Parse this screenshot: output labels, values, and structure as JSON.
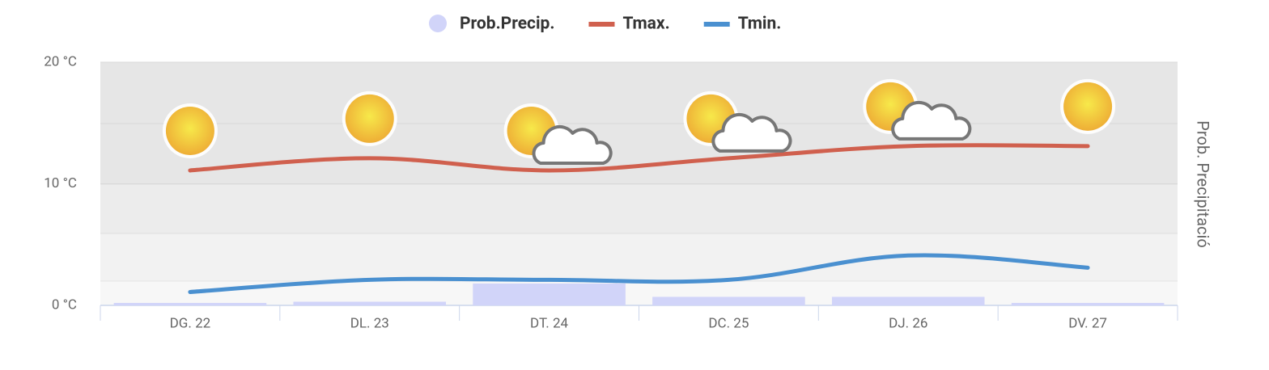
{
  "chart_data": {
    "type": "weather",
    "legend": {
      "position": "top"
    },
    "y2_title": "Prob. Precipitació",
    "categories": [
      "DG. 22",
      "DL. 23",
      "DT. 24",
      "DC. 25",
      "DJ. 26",
      "DV. 27"
    ],
    "icons": [
      "sun",
      "sun",
      "sun-cloud",
      "sun-cloud",
      "sun-cloud",
      "sun"
    ],
    "series": [
      {
        "name": "Prob.Precip.",
        "color": "#d1d4f9",
        "axis": "y2",
        "kind": "bar",
        "values": [
          1,
          1.5,
          9,
          3.5,
          3.5,
          1
        ]
      },
      {
        "name": "Tmax.",
        "color": "#d0604e",
        "kind": "line",
        "values": [
          11.1,
          12.1,
          11.1,
          12.1,
          13.1,
          13.1
        ]
      },
      {
        "name": "Tmin.",
        "color": "#4a90d0",
        "kind": "line",
        "values": [
          1.1,
          2.1,
          2.1,
          2.1,
          4.1,
          3.1
        ]
      }
    ],
    "ylim": [
      0,
      20
    ],
    "yticks": [
      {
        "value": 0,
        "label": "0 °C"
      },
      {
        "value": 10,
        "label": "10 °C"
      },
      {
        "value": 20,
        "label": "20 °C"
      }
    ],
    "y2lim": [
      0,
      100
    ]
  }
}
